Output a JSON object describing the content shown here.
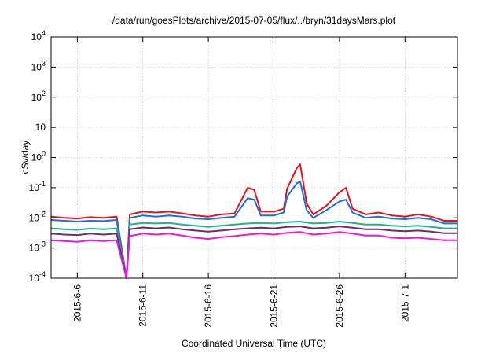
{
  "chart_data": {
    "type": "line",
    "title": "/data/run/goesPlots/archive/2015-07-05/flux/../bryn/31daysMars.plot",
    "xlabel": "Coordinated Universal Time (UTC)",
    "ylabel": "cSv/day",
    "y_scale": "log",
    "ylim": [
      0.0001,
      10000
    ],
    "xlim": [
      "2015-06-04",
      "2015-07-05"
    ],
    "grid": true,
    "y_ticks": [
      {
        "value": 0.0001,
        "base": "10",
        "exp": "-4"
      },
      {
        "value": 0.001,
        "base": "10",
        "exp": "-3"
      },
      {
        "value": 0.01,
        "base": "10",
        "exp": "-2"
      },
      {
        "value": 0.1,
        "base": "10",
        "exp": "-1"
      },
      {
        "value": 1,
        "base": "10",
        "exp": "0"
      },
      {
        "value": 10,
        "base": "10",
        "exp": ""
      },
      {
        "value": 100,
        "base": "10",
        "exp": "2"
      },
      {
        "value": 1000,
        "base": "10",
        "exp": "3"
      },
      {
        "value": 10000,
        "base": "10",
        "exp": "4"
      }
    ],
    "x_ticks": [
      {
        "date": "2015-06-06",
        "label": "2015-6-6"
      },
      {
        "date": "2015-06-11",
        "label": "2015-6-11"
      },
      {
        "date": "2015-06-16",
        "label": "2015-6-16"
      },
      {
        "date": "2015-06-21",
        "label": "2015-6-21"
      },
      {
        "date": "2015-06-26",
        "label": "2015-6-26"
      },
      {
        "date": "2015-07-01",
        "label": "2015-7-1"
      }
    ],
    "series": [
      {
        "color": "#e8131a",
        "x": [
          "2015-06-04",
          "2015-06-05",
          "2015-06-06",
          "2015-06-07",
          "2015-06-08",
          "2015-06-09",
          "2015-06-09T18:00",
          "2015-06-10",
          "2015-06-11",
          "2015-06-12",
          "2015-06-13",
          "2015-06-14",
          "2015-06-15",
          "2015-06-16",
          "2015-06-17",
          "2015-06-18",
          "2015-06-19",
          "2015-06-19T12:00",
          "2015-06-20",
          "2015-06-21",
          "2015-06-21T18:00",
          "2015-06-22",
          "2015-06-22T18:00",
          "2015-06-23",
          "2015-06-23T12:00",
          "2015-06-24",
          "2015-06-25",
          "2015-06-26",
          "2015-06-26T12:00",
          "2015-06-27",
          "2015-06-28",
          "2015-06-29",
          "2015-06-30",
          "2015-07-01",
          "2015-07-02",
          "2015-07-03",
          "2015-07-04",
          "2015-07-05"
        ],
        "values": [
          0.011,
          0.01,
          0.0095,
          0.0105,
          0.01,
          0.011,
          0.0001,
          0.013,
          0.016,
          0.015,
          0.016,
          0.014,
          0.012,
          0.011,
          0.013,
          0.014,
          0.1,
          0.085,
          0.016,
          0.016,
          0.02,
          0.09,
          0.45,
          0.6,
          0.03,
          0.013,
          0.025,
          0.07,
          0.1,
          0.02,
          0.013,
          0.015,
          0.012,
          0.011,
          0.013,
          0.011,
          0.008,
          0.008
        ]
      },
      {
        "color": "#1a6ee8",
        "x": [
          "2015-06-04",
          "2015-06-05",
          "2015-06-06",
          "2015-06-07",
          "2015-06-08",
          "2015-06-09",
          "2015-06-09T18:00",
          "2015-06-10",
          "2015-06-11",
          "2015-06-12",
          "2015-06-13",
          "2015-06-14",
          "2015-06-15",
          "2015-06-16",
          "2015-06-17",
          "2015-06-18",
          "2015-06-19",
          "2015-06-19T12:00",
          "2015-06-20",
          "2015-06-21",
          "2015-06-21T18:00",
          "2015-06-22",
          "2015-06-22T18:00",
          "2015-06-23",
          "2015-06-23T12:00",
          "2015-06-24",
          "2015-06-25",
          "2015-06-26",
          "2015-06-26T12:00",
          "2015-06-27",
          "2015-06-28",
          "2015-06-29",
          "2015-06-30",
          "2015-07-01",
          "2015-07-02",
          "2015-07-03",
          "2015-07-04",
          "2015-07-05"
        ],
        "values": [
          0.0085,
          0.008,
          0.0075,
          0.008,
          0.0078,
          0.0085,
          0.0001,
          0.01,
          0.012,
          0.011,
          0.012,
          0.011,
          0.0095,
          0.009,
          0.01,
          0.011,
          0.045,
          0.04,
          0.012,
          0.012,
          0.015,
          0.05,
          0.14,
          0.16,
          0.018,
          0.01,
          0.018,
          0.035,
          0.04,
          0.015,
          0.01,
          0.011,
          0.0095,
          0.009,
          0.01,
          0.009,
          0.0065,
          0.0065
        ]
      },
      {
        "color": "#22b38a",
        "x": [
          "2015-06-04",
          "2015-06-05",
          "2015-06-06",
          "2015-06-07",
          "2015-06-08",
          "2015-06-09",
          "2015-06-09T18:00",
          "2015-06-10",
          "2015-06-11",
          "2015-06-12",
          "2015-06-13",
          "2015-06-14",
          "2015-06-15",
          "2015-06-16",
          "2015-06-17",
          "2015-06-18",
          "2015-06-19",
          "2015-06-20",
          "2015-06-21",
          "2015-06-22",
          "2015-06-23",
          "2015-06-24",
          "2015-06-25",
          "2015-06-26",
          "2015-06-27",
          "2015-06-28",
          "2015-06-29",
          "2015-06-30",
          "2015-07-01",
          "2015-07-02",
          "2015-07-03",
          "2015-07-04",
          "2015-07-05"
        ],
        "values": [
          0.0045,
          0.0042,
          0.004,
          0.0044,
          0.0042,
          0.0045,
          0.0001,
          0.006,
          0.0068,
          0.0065,
          0.0068,
          0.006,
          0.0055,
          0.005,
          0.0055,
          0.006,
          0.0065,
          0.0068,
          0.0065,
          0.0072,
          0.0075,
          0.0065,
          0.0068,
          0.0075,
          0.0068,
          0.006,
          0.006,
          0.0055,
          0.0052,
          0.0055,
          0.005,
          0.0045,
          0.0045
        ]
      },
      {
        "color": "#6e2c6e",
        "x": [
          "2015-06-04",
          "2015-06-05",
          "2015-06-06",
          "2015-06-07",
          "2015-06-08",
          "2015-06-09",
          "2015-06-09T18:00",
          "2015-06-10",
          "2015-06-11",
          "2015-06-12",
          "2015-06-13",
          "2015-06-14",
          "2015-06-15",
          "2015-06-16",
          "2015-06-17",
          "2015-06-18",
          "2015-06-19",
          "2015-06-20",
          "2015-06-21",
          "2015-06-22",
          "2015-06-23",
          "2015-06-24",
          "2015-06-25",
          "2015-06-26",
          "2015-06-27",
          "2015-06-28",
          "2015-06-29",
          "2015-06-30",
          "2015-07-01",
          "2015-07-02",
          "2015-07-03",
          "2015-07-04",
          "2015-07-05"
        ],
        "values": [
          0.003,
          0.0028,
          0.0027,
          0.003,
          0.0028,
          0.003,
          0.0001,
          0.0042,
          0.0048,
          0.0045,
          0.0048,
          0.0042,
          0.0038,
          0.0035,
          0.0038,
          0.0042,
          0.0045,
          0.0047,
          0.0045,
          0.005,
          0.0052,
          0.0045,
          0.0047,
          0.0052,
          0.0047,
          0.0042,
          0.0042,
          0.0038,
          0.0036,
          0.0038,
          0.0035,
          0.0031,
          0.0031
        ]
      },
      {
        "color": "#f015e0",
        "x": [
          "2015-06-04",
          "2015-06-05",
          "2015-06-06",
          "2015-06-07",
          "2015-06-08",
          "2015-06-09",
          "2015-06-09T18:00",
          "2015-06-10",
          "2015-06-11",
          "2015-06-12",
          "2015-06-13",
          "2015-06-14",
          "2015-06-15",
          "2015-06-16",
          "2015-06-17",
          "2015-06-18",
          "2015-06-19",
          "2015-06-20",
          "2015-06-21",
          "2015-06-22",
          "2015-06-23",
          "2015-06-24",
          "2015-06-25",
          "2015-06-26",
          "2015-06-27",
          "2015-06-28",
          "2015-06-29",
          "2015-06-30",
          "2015-07-01",
          "2015-07-02",
          "2015-07-03",
          "2015-07-04",
          "2015-07-05"
        ],
        "values": [
          0.0018,
          0.0017,
          0.0016,
          0.0018,
          0.0017,
          0.0018,
          0.0001,
          0.0025,
          0.003,
          0.0028,
          0.003,
          0.0026,
          0.0022,
          0.002,
          0.0023,
          0.0025,
          0.0028,
          0.003,
          0.0028,
          0.0032,
          0.0034,
          0.0028,
          0.003,
          0.0034,
          0.003,
          0.0026,
          0.0026,
          0.0022,
          0.0021,
          0.0022,
          0.002,
          0.0018,
          0.0018
        ]
      }
    ]
  }
}
